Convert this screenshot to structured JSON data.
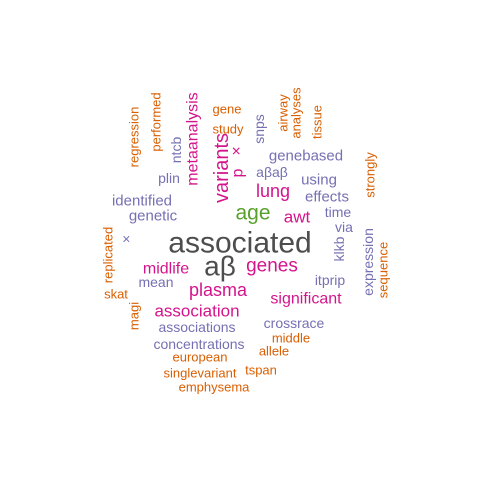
{
  "colors": {
    "gray": "#4d4d4d",
    "green": "#5aa02c",
    "magenta": "#d4148c",
    "purple": "#7570b3",
    "orange": "#d95f02"
  },
  "words": [
    {
      "text": "associated",
      "color": "gray"
    },
    {
      "text": "aβ",
      "color": "gray"
    },
    {
      "text": "age",
      "color": "green"
    },
    {
      "text": "genes",
      "color": "magenta"
    },
    {
      "text": "plasma",
      "color": "magenta"
    },
    {
      "text": "variants",
      "color": "magenta"
    },
    {
      "text": "lung",
      "color": "magenta"
    },
    {
      "text": "awt",
      "color": "magenta"
    },
    {
      "text": "midlife",
      "color": "magenta"
    },
    {
      "text": "association",
      "color": "magenta"
    },
    {
      "text": "significant",
      "color": "magenta"
    },
    {
      "text": "metaanalysis",
      "color": "magenta"
    },
    {
      "text": "p",
      "color": "magenta"
    },
    {
      "text": "×",
      "color": "magenta"
    },
    {
      "text": "genebased",
      "color": "purple"
    },
    {
      "text": "aβaβ",
      "color": "purple"
    },
    {
      "text": "using",
      "color": "purple"
    },
    {
      "text": "effects",
      "color": "purple"
    },
    {
      "text": "time",
      "color": "purple"
    },
    {
      "text": "via",
      "color": "purple"
    },
    {
      "text": "klkb",
      "color": "purple"
    },
    {
      "text": "itprip",
      "color": "purple"
    },
    {
      "text": "expression",
      "color": "purple"
    },
    {
      "text": "identified",
      "color": "purple"
    },
    {
      "text": "genetic",
      "color": "purple"
    },
    {
      "text": "plin",
      "color": "purple"
    },
    {
      "text": "ntcb",
      "color": "purple"
    },
    {
      "text": "snps",
      "color": "purple"
    },
    {
      "text": "mean",
      "color": "purple"
    },
    {
      "text": "associations",
      "color": "purple"
    },
    {
      "text": "crossrace",
      "color": "purple"
    },
    {
      "text": "concentrations",
      "color": "purple"
    },
    {
      "text": "×",
      "color": "purple"
    },
    {
      "text": "gene",
      "color": "orange"
    },
    {
      "text": "study",
      "color": "orange"
    },
    {
      "text": "airway",
      "color": "orange"
    },
    {
      "text": "analyses",
      "color": "orange"
    },
    {
      "text": "tissue",
      "color": "orange"
    },
    {
      "text": "performed",
      "color": "orange"
    },
    {
      "text": "regression",
      "color": "orange"
    },
    {
      "text": "strongly",
      "color": "orange"
    },
    {
      "text": "sequence",
      "color": "orange"
    },
    {
      "text": "replicated",
      "color": "orange"
    },
    {
      "text": "skat",
      "color": "orange"
    },
    {
      "text": "magi",
      "color": "orange"
    },
    {
      "text": "middle",
      "color": "orange"
    },
    {
      "text": "allele",
      "color": "orange"
    },
    {
      "text": "european",
      "color": "orange"
    },
    {
      "text": "singlevariant",
      "color": "orange"
    },
    {
      "text": "tspan",
      "color": "orange"
    },
    {
      "text": "emphysema",
      "color": "orange"
    }
  ]
}
